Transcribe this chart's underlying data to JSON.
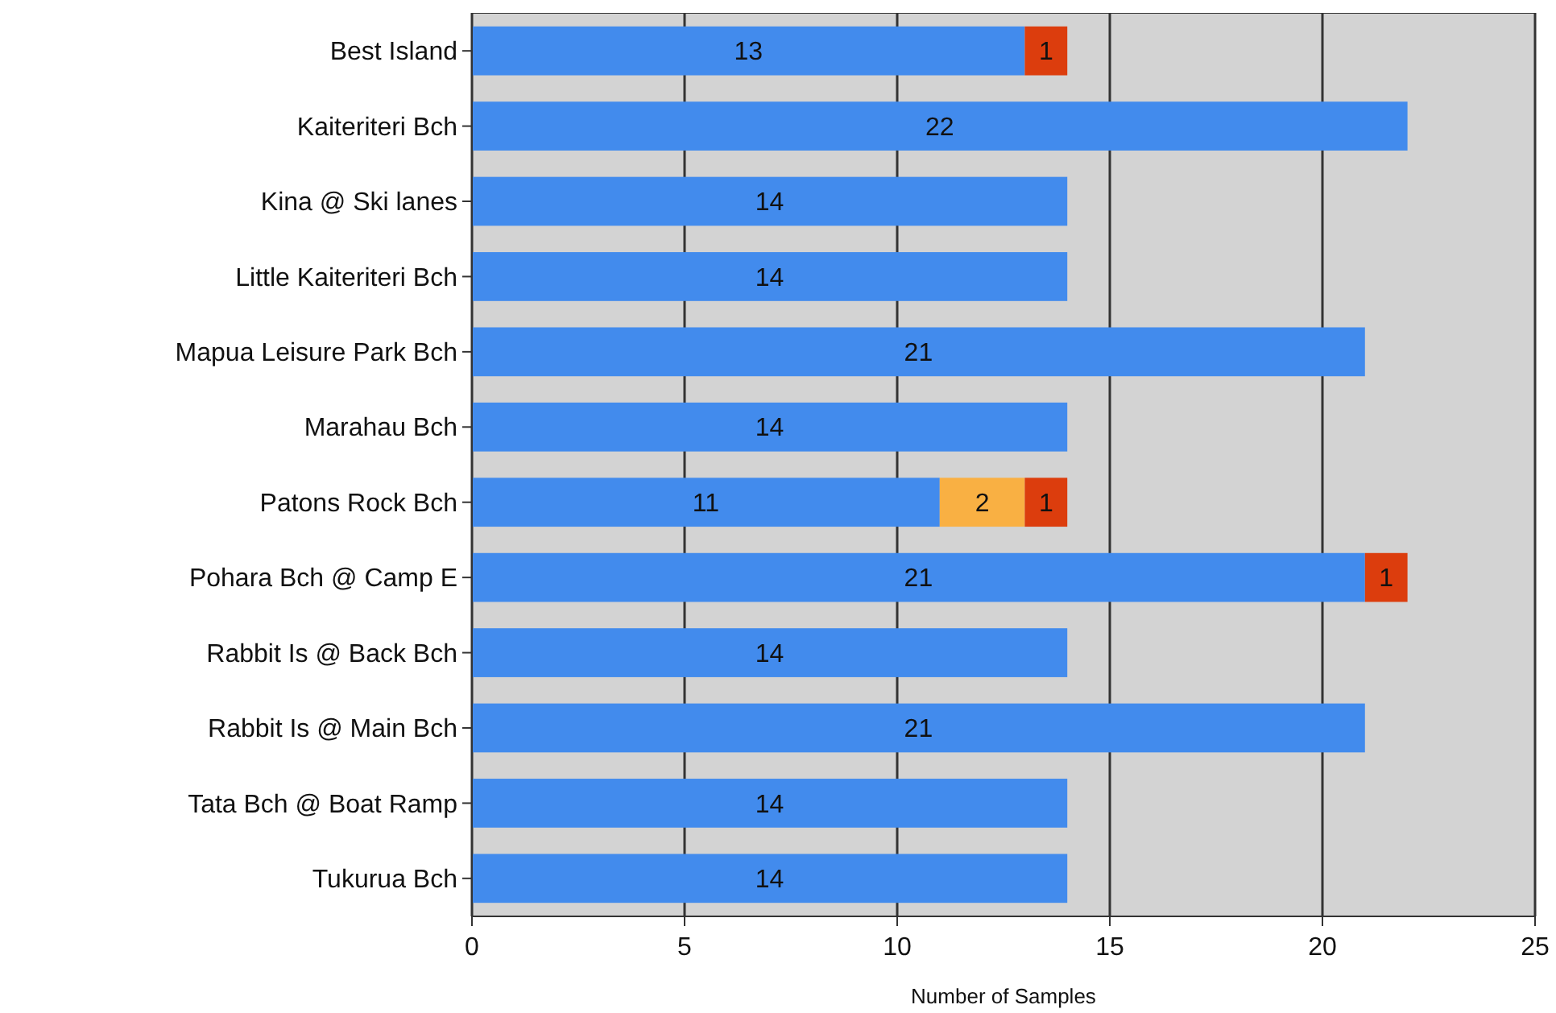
{
  "chart_data": {
    "type": "bar",
    "orientation": "horizontal",
    "stacked": true,
    "xlabel": "Number of Samples",
    "categories": [
      "Best Island",
      "Kaiteriteri Bch",
      "Kina @ Ski lanes",
      "Little Kaiteriteri Bch",
      "Mapua Leisure Park Bch",
      "Marahau Bch",
      "Patons Rock Bch",
      "Pohara Bch @ Camp E",
      "Rabbit Is @ Back Bch",
      "Rabbit Is @ Main Bch",
      "Tata Bch @ Boat Ramp",
      "Tukurua Bch"
    ],
    "series": [
      {
        "color": "#428bed",
        "values": [
          13,
          22,
          14,
          14,
          21,
          14,
          11,
          21,
          14,
          21,
          14,
          14
        ]
      },
      {
        "color": "#f9b043",
        "values": [
          null,
          null,
          null,
          null,
          null,
          null,
          2,
          null,
          null,
          null,
          null,
          null
        ]
      },
      {
        "color": "#dc3d0d",
        "values": [
          1,
          null,
          null,
          null,
          null,
          null,
          1,
          1,
          null,
          null,
          null,
          null
        ]
      }
    ],
    "xlim": [
      0,
      25
    ],
    "xticks": [
      0,
      5,
      10,
      15,
      20,
      25
    ],
    "grid": "x",
    "data_labels": true
  }
}
